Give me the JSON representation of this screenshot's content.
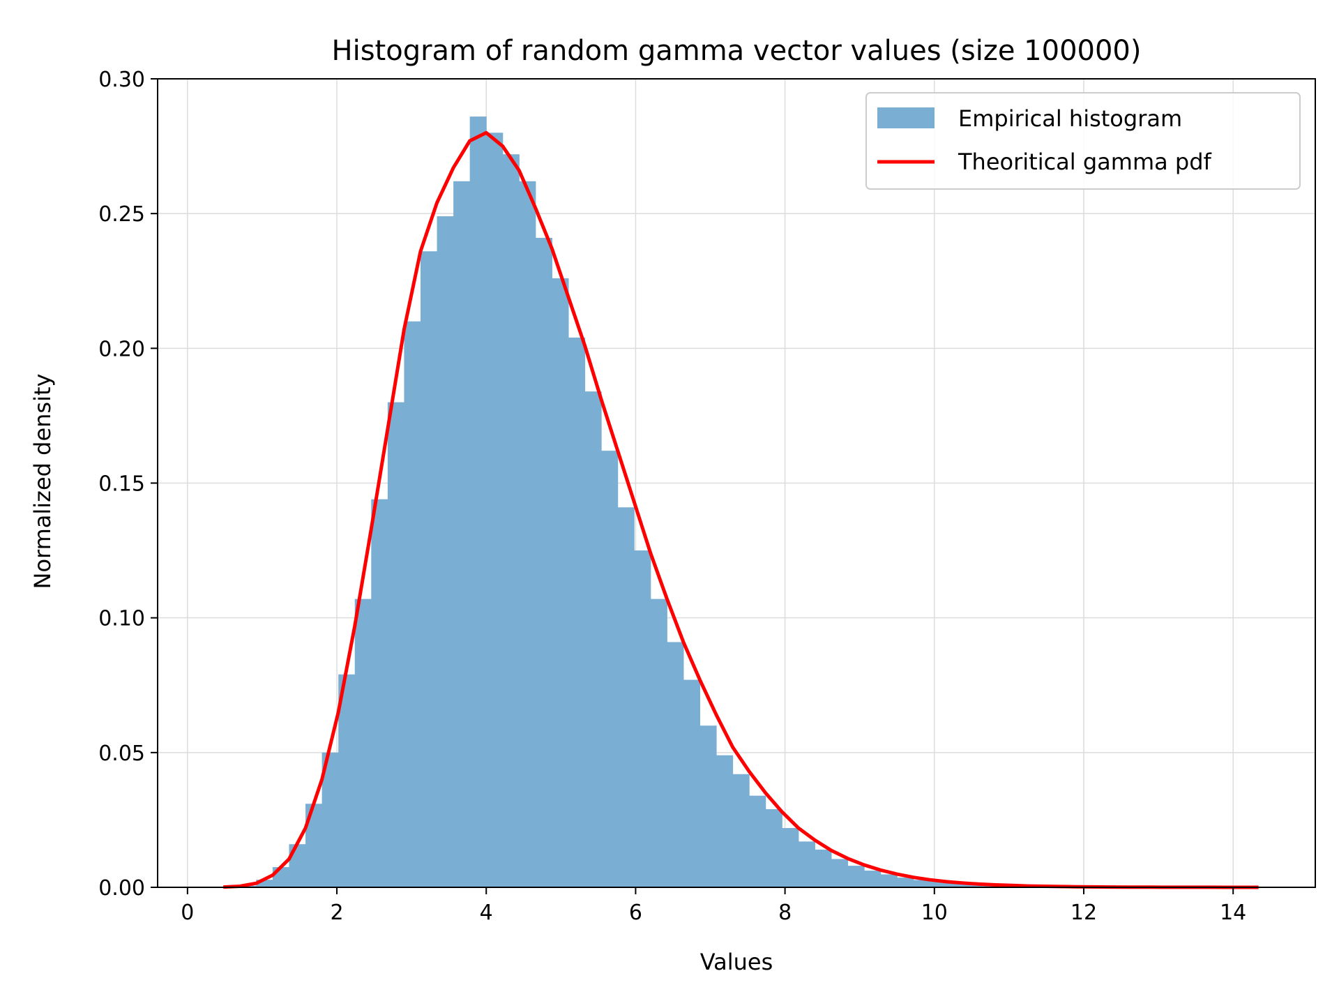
{
  "chart_data": {
    "type": "bar",
    "title": "Histogram of random gamma vector values (size 100000)",
    "xlabel": "Values",
    "ylabel": "Normalized density",
    "xlim": [
      -0.4,
      15.1
    ],
    "ylim": [
      0,
      0.3
    ],
    "xticks": [
      0,
      2,
      4,
      6,
      8,
      10,
      12,
      14
    ],
    "yticks": [
      "0.00",
      "0.05",
      "0.10",
      "0.15",
      "0.20",
      "0.25",
      "0.30"
    ],
    "grid": true,
    "legend_position": "upper-right",
    "colors": {
      "histogram": "#7aaed2",
      "pdf_line": "#ff0000",
      "grid": "#dcdcdc"
    },
    "histogram": {
      "name": "Empirical histogram",
      "bin_edges": [
        0.48,
        0.7,
        0.92,
        1.14,
        1.36,
        1.58,
        1.8,
        2.02,
        2.24,
        2.46,
        2.68,
        2.9,
        3.12,
        3.34,
        3.56,
        3.78,
        4.0,
        4.22,
        4.44,
        4.66,
        4.88,
        5.1,
        5.32,
        5.54,
        5.76,
        5.98,
        6.2,
        6.42,
        6.64,
        6.86,
        7.08,
        7.3,
        7.52,
        7.74,
        7.96,
        8.18,
        8.4,
        8.62,
        8.84,
        9.06,
        9.28,
        9.5,
        9.72,
        9.94,
        10.16,
        10.38,
        10.6,
        10.82,
        11.04,
        11.26,
        11.48,
        11.7,
        11.92,
        12.14,
        12.36,
        12.58,
        12.8,
        13.02,
        13.24,
        13.46,
        13.68,
        13.9,
        14.12,
        14.34
      ],
      "densities": [
        0.0002,
        0.0006,
        0.0028,
        0.0075,
        0.016,
        0.031,
        0.05,
        0.079,
        0.107,
        0.144,
        0.18,
        0.21,
        0.236,
        0.249,
        0.262,
        0.286,
        0.28,
        0.272,
        0.262,
        0.241,
        0.226,
        0.204,
        0.184,
        0.162,
        0.141,
        0.125,
        0.107,
        0.091,
        0.077,
        0.06,
        0.049,
        0.042,
        0.034,
        0.029,
        0.022,
        0.017,
        0.014,
        0.0105,
        0.008,
        0.0062,
        0.0048,
        0.0036,
        0.0027,
        0.0021,
        0.0016,
        0.0012,
        0.0009,
        0.0007,
        0.0005,
        0.0004,
        0.0003,
        0.0002,
        0.00015,
        0.0001,
        0.0001,
        7e-05,
        5e-05,
        4e-05,
        3e-05,
        2e-05,
        2e-05,
        1e-05,
        1e-05
      ]
    },
    "pdf": {
      "name": "Theoritical gamma pdf",
      "x": [
        0.48,
        0.7,
        0.92,
        1.14,
        1.36,
        1.58,
        1.8,
        2.02,
        2.24,
        2.46,
        2.68,
        2.9,
        3.12,
        3.34,
        3.56,
        3.78,
        4.0,
        4.22,
        4.44,
        4.66,
        4.88,
        5.1,
        5.32,
        5.54,
        5.76,
        5.98,
        6.2,
        6.42,
        6.64,
        6.86,
        7.08,
        7.3,
        7.52,
        7.74,
        7.96,
        8.18,
        8.4,
        8.62,
        8.84,
        9.06,
        9.28,
        9.5,
        9.72,
        9.94,
        10.16,
        10.38,
        10.6,
        10.82,
        11.04,
        11.26,
        11.48,
        11.7,
        11.92,
        12.14,
        12.36,
        12.58,
        12.8,
        13.02,
        13.24,
        13.46,
        13.68,
        13.9,
        14.12,
        14.34
      ],
      "y": [
        0.0001,
        0.0004,
        0.0015,
        0.0045,
        0.0105,
        0.022,
        0.04,
        0.065,
        0.097,
        0.133,
        0.17,
        0.207,
        0.236,
        0.254,
        0.267,
        0.277,
        0.28,
        0.275,
        0.266,
        0.252,
        0.237,
        0.219,
        0.201,
        0.181,
        0.162,
        0.143,
        0.124,
        0.107,
        0.091,
        0.077,
        0.064,
        0.052,
        0.043,
        0.035,
        0.028,
        0.022,
        0.0175,
        0.0137,
        0.0107,
        0.0083,
        0.0064,
        0.0049,
        0.0037,
        0.0028,
        0.0021,
        0.0016,
        0.0012,
        0.0009,
        0.0007,
        0.0005,
        0.0004,
        0.0003,
        0.0002,
        0.00015,
        0.0001,
        8e-05,
        6e-05,
        4e-05,
        3e-05,
        2e-05,
        2e-05,
        1e-05,
        1e-05,
        1e-05
      ]
    }
  }
}
